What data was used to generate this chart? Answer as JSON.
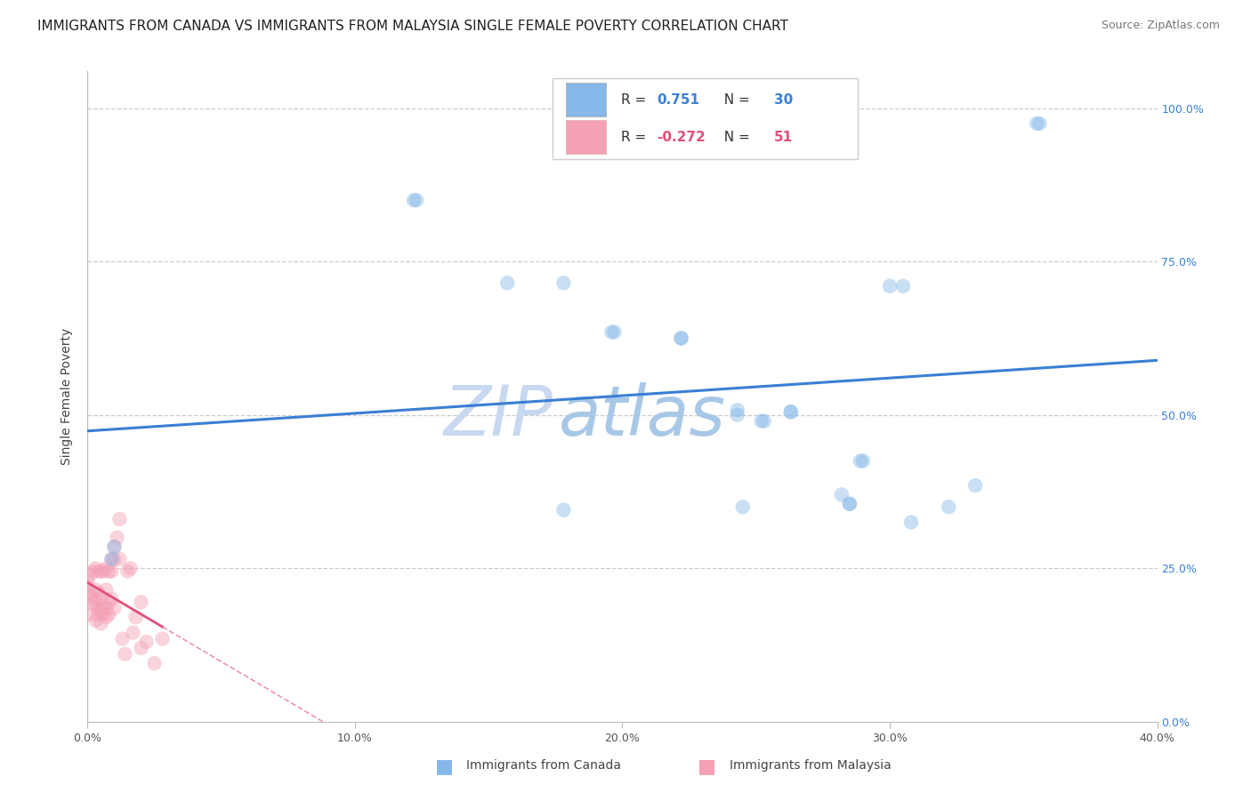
{
  "title": "IMMIGRANTS FROM CANADA VS IMMIGRANTS FROM MALAYSIA SINGLE FEMALE POVERTY CORRELATION CHART",
  "source": "Source: ZipAtlas.com",
  "legend_label_canada": "Immigrants from Canada",
  "legend_label_malaysia": "Immigrants from Malaysia",
  "ylabel": "Single Female Poverty",
  "watermark_zip": "ZIP",
  "watermark_atlas": "atlas",
  "canada_R": 0.751,
  "canada_N": 30,
  "malaysia_R": -0.272,
  "malaysia_N": 51,
  "canada_color": "#85b8e8",
  "malaysia_color": "#f4a0b5",
  "canada_line_color": "#3a7fd5",
  "malaysia_line_color": "#e0507a",
  "xlim": [
    0.0,
    0.4
  ],
  "ylim": [
    0.0,
    1.06
  ],
  "xticks": [
    0.0,
    0.1,
    0.2,
    0.3,
    0.4
  ],
  "yticks": [
    0.0,
    0.25,
    0.5,
    0.75,
    1.0
  ],
  "xtick_labels": [
    "0.0%",
    "10.0%",
    "20.0%",
    "30.0%",
    "40.0%"
  ],
  "ytick_labels": [
    "0.0%",
    "25.0%",
    "50.0%",
    "75.0%",
    "100.0%"
  ],
  "canada_x": [
    0.009,
    0.01,
    0.122,
    0.123,
    0.157,
    0.178,
    0.178,
    0.196,
    0.197,
    0.222,
    0.222,
    0.243,
    0.243,
    0.245,
    0.252,
    0.253,
    0.263,
    0.263,
    0.282,
    0.285,
    0.285,
    0.289,
    0.29,
    0.3,
    0.305,
    0.308,
    0.322,
    0.332,
    0.355,
    0.356
  ],
  "canada_y": [
    0.265,
    0.285,
    0.85,
    0.85,
    0.715,
    0.715,
    0.345,
    0.635,
    0.635,
    0.625,
    0.625,
    0.5,
    0.508,
    0.35,
    0.49,
    0.49,
    0.505,
    0.505,
    0.37,
    0.355,
    0.355,
    0.425,
    0.425,
    0.71,
    0.71,
    0.325,
    0.35,
    0.385,
    0.975,
    0.975
  ],
  "malaysia_x": [
    0.0,
    0.0,
    0.001,
    0.001,
    0.001,
    0.002,
    0.002,
    0.002,
    0.002,
    0.003,
    0.003,
    0.003,
    0.003,
    0.004,
    0.004,
    0.004,
    0.004,
    0.005,
    0.005,
    0.005,
    0.005,
    0.006,
    0.006,
    0.006,
    0.007,
    0.007,
    0.007,
    0.007,
    0.008,
    0.008,
    0.008,
    0.009,
    0.009,
    0.009,
    0.01,
    0.01,
    0.01,
    0.011,
    0.012,
    0.012,
    0.013,
    0.014,
    0.015,
    0.016,
    0.017,
    0.018,
    0.02,
    0.02,
    0.022,
    0.025,
    0.028
  ],
  "malaysia_y": [
    0.23,
    0.22,
    0.21,
    0.205,
    0.24,
    0.175,
    0.19,
    0.195,
    0.245,
    0.165,
    0.2,
    0.215,
    0.25,
    0.175,
    0.185,
    0.21,
    0.245,
    0.16,
    0.18,
    0.2,
    0.245,
    0.175,
    0.19,
    0.245,
    0.17,
    0.185,
    0.215,
    0.25,
    0.175,
    0.195,
    0.245,
    0.2,
    0.245,
    0.265,
    0.285,
    0.265,
    0.185,
    0.3,
    0.265,
    0.33,
    0.135,
    0.11,
    0.245,
    0.25,
    0.145,
    0.17,
    0.195,
    0.12,
    0.13,
    0.095,
    0.135
  ],
  "background_color": "#ffffff",
  "grid_color": "#cccccc",
  "title_fontsize": 11,
  "source_fontsize": 9,
  "axis_label_fontsize": 10,
  "tick_fontsize": 9,
  "watermark_fontsize_zip": 56,
  "watermark_fontsize_atlas": 56,
  "watermark_color_zip": "#c8d8f0",
  "watermark_color_atlas": "#a8c8e8",
  "scatter_size": 140,
  "scatter_alpha": 0.45,
  "legend_R_color_canada": "#3a7fd5",
  "legend_N_color_canada": "#3a7fd5",
  "legend_R_color_malaysia": "#e0507a",
  "legend_N_color_malaysia": "#e0507a"
}
